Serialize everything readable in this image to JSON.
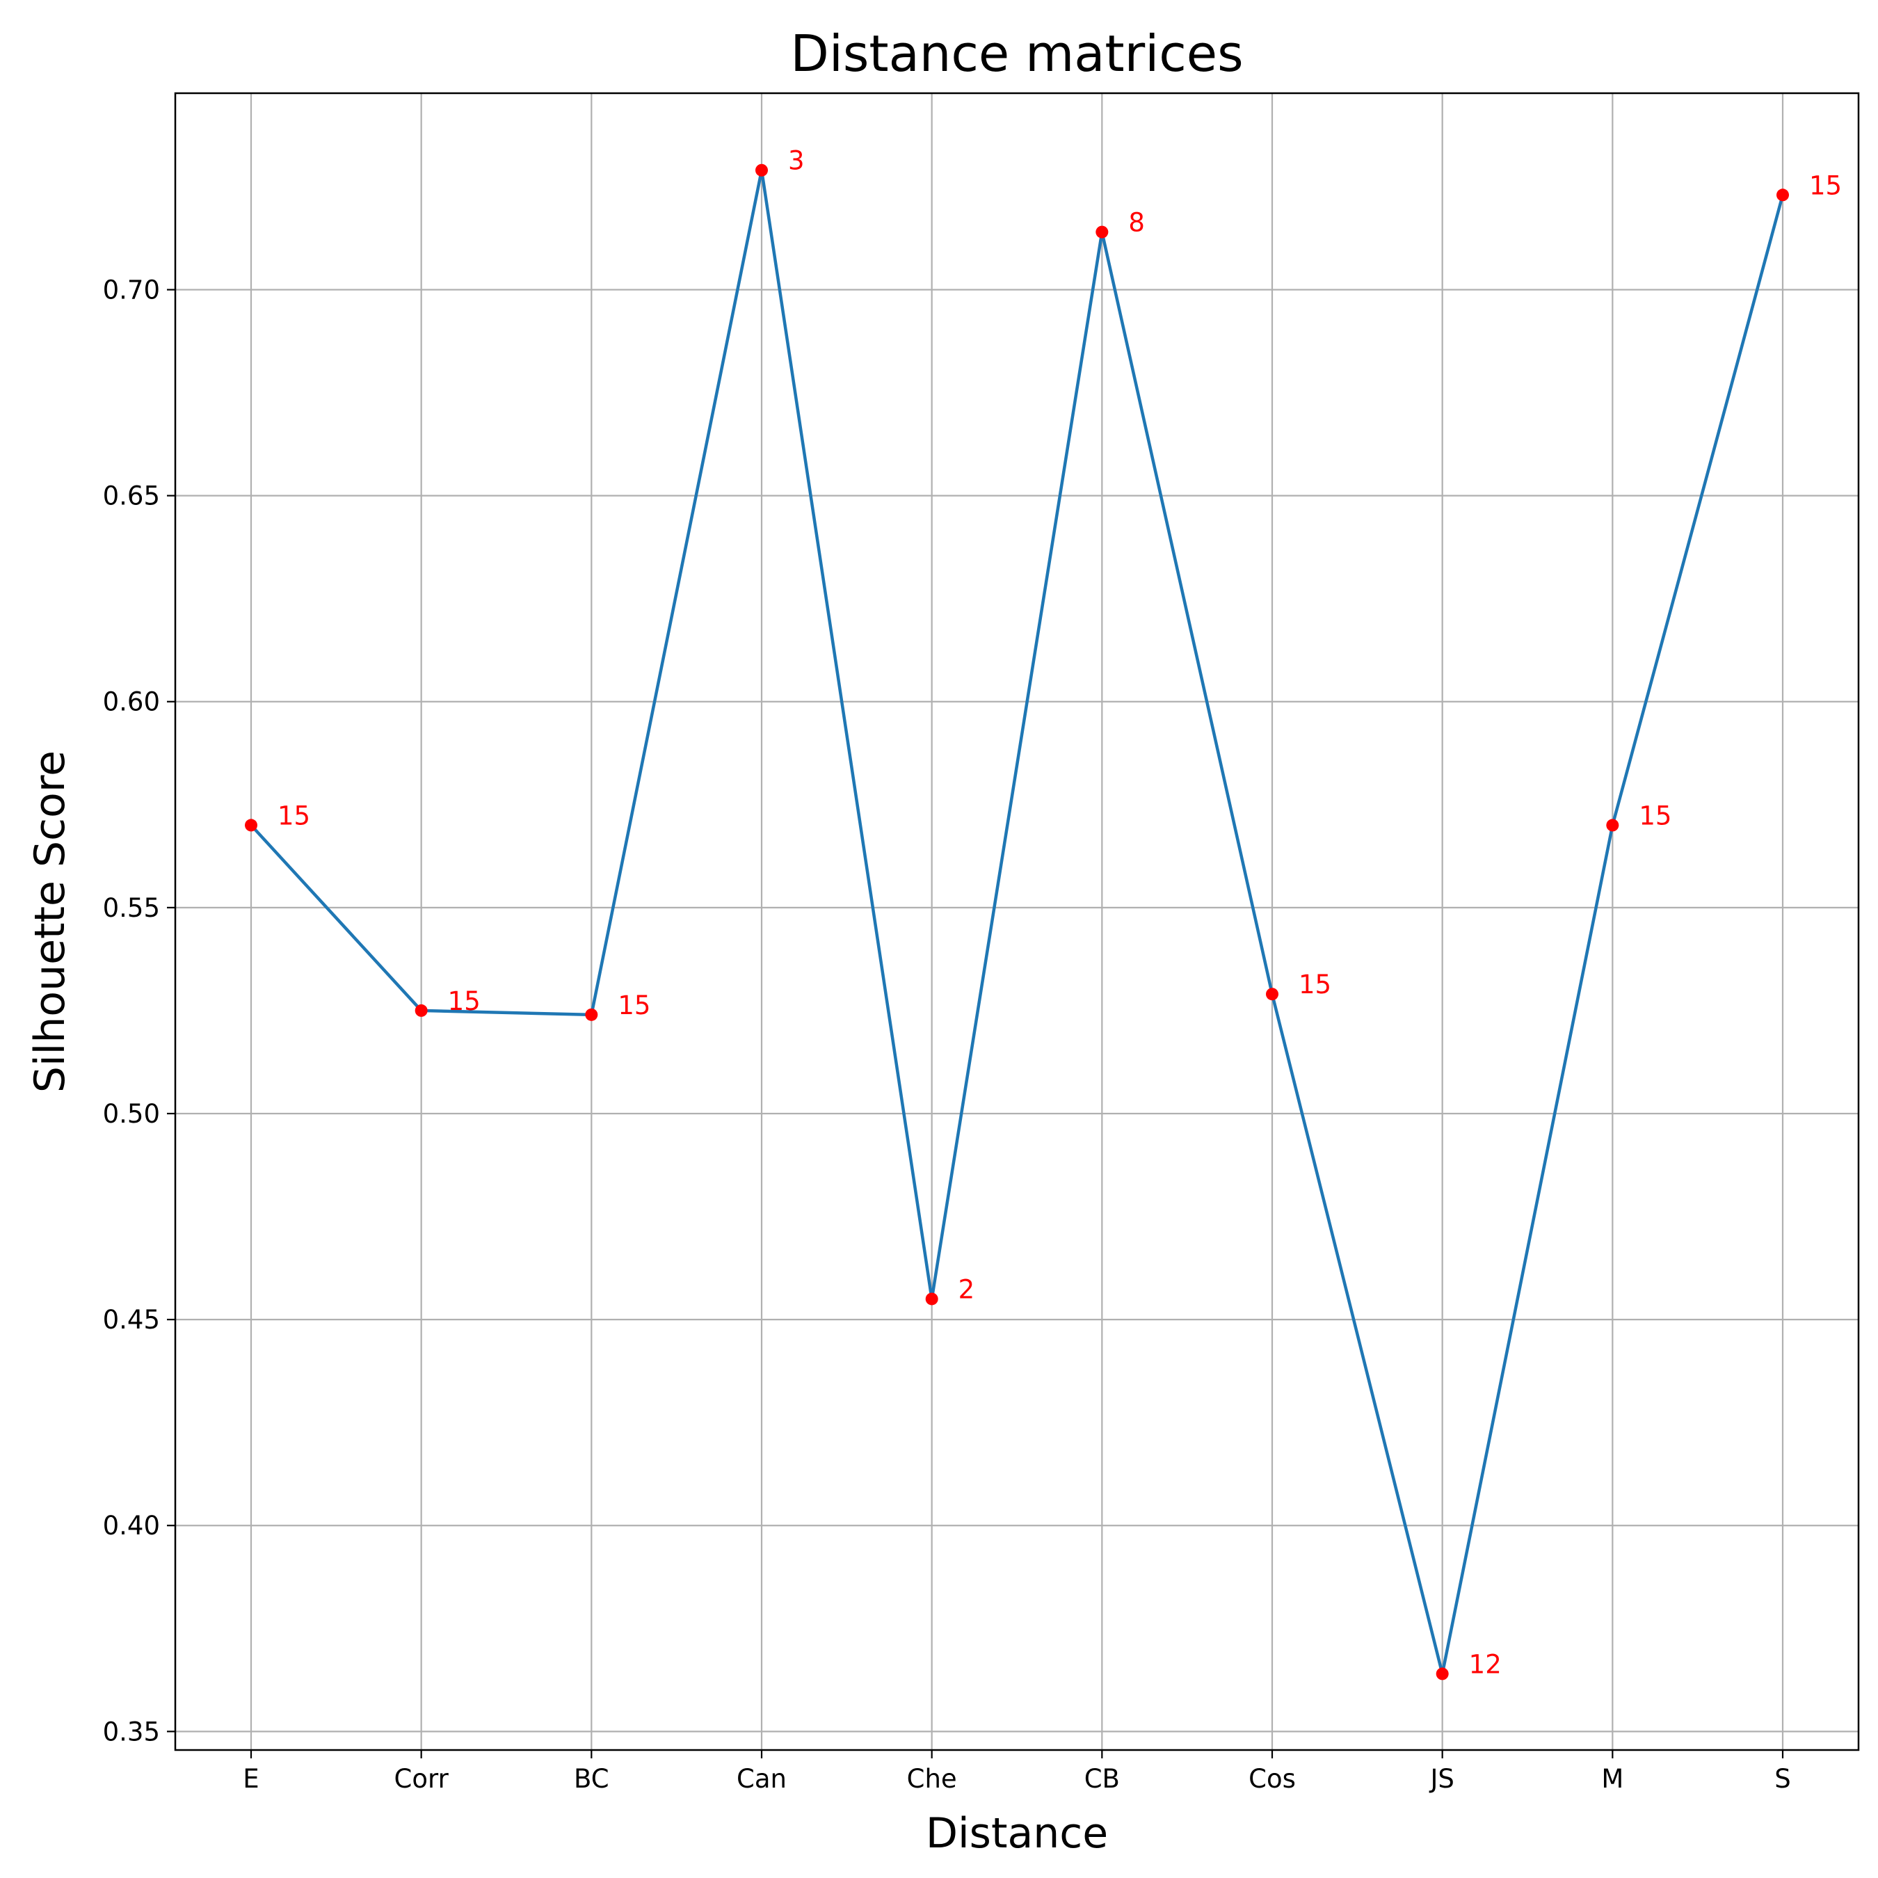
{
  "chart_data": {
    "type": "line",
    "title": "Distance matrices",
    "xlabel": "Distance",
    "ylabel": "Silhouette Score",
    "categories": [
      "E",
      "Corr",
      "BC",
      "Can",
      "Che",
      "CB",
      "Cos",
      "JS",
      "M",
      "S"
    ],
    "values": [
      0.57,
      0.525,
      0.524,
      0.729,
      0.455,
      0.714,
      0.529,
      0.364,
      0.57,
      0.723
    ],
    "point_labels": [
      "15",
      "15",
      "15",
      "3",
      "2",
      "8",
      "15",
      "12",
      "15",
      "15"
    ],
    "y_ticks": [
      0.35,
      0.4,
      0.45,
      0.5,
      0.55,
      0.6,
      0.65,
      0.7
    ],
    "y_tick_labels": [
      "0.35",
      "0.40",
      "0.45",
      "0.50",
      "0.55",
      "0.60",
      "0.65",
      "0.70"
    ],
    "ylim": [
      0.3455,
      0.7477
    ],
    "grid": true,
    "line_color": "#1f77b4",
    "marker_color": "#ff0000",
    "label_color": "#ff0000"
  }
}
